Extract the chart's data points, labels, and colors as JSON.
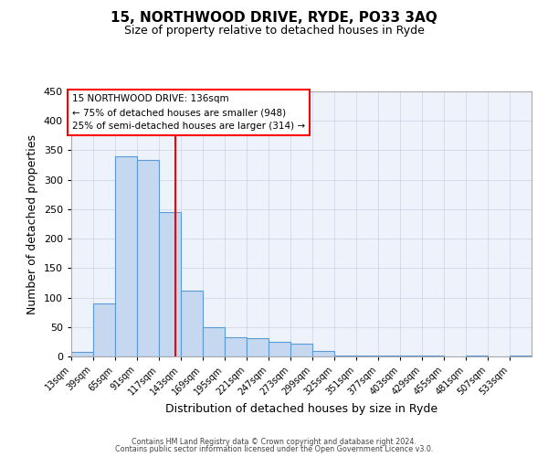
{
  "title": "15, NORTHWOOD DRIVE, RYDE, PO33 3AQ",
  "subtitle": "Size of property relative to detached houses in Ryde",
  "xlabel": "Distribution of detached houses by size in Ryde",
  "ylabel": "Number of detached properties",
  "bin_labels": [
    "13sqm",
    "39sqm",
    "65sqm",
    "91sqm",
    "117sqm",
    "143sqm",
    "169sqm",
    "195sqm",
    "221sqm",
    "247sqm",
    "273sqm",
    "299sqm",
    "325sqm",
    "351sqm",
    "377sqm",
    "403sqm",
    "429sqm",
    "455sqm",
    "481sqm",
    "507sqm",
    "533sqm"
  ],
  "bin_edges": [
    13,
    39,
    65,
    91,
    117,
    143,
    169,
    195,
    221,
    247,
    273,
    299,
    325,
    351,
    377,
    403,
    429,
    455,
    481,
    507,
    533,
    559
  ],
  "bar_heights": [
    7,
    90,
    340,
    333,
    245,
    112,
    50,
    32,
    31,
    25,
    21,
    10,
    2,
    1,
    1,
    1,
    1,
    0,
    1,
    0,
    1
  ],
  "bar_color": "#c5d8f0",
  "bar_edge_color": "#5b9bd5",
  "grid_color": "#d0d8e8",
  "background_color": "#eef2fa",
  "vline_x": 136,
  "vline_color": "red",
  "annotation_title": "15 NORTHWOOD DRIVE: 136sqm",
  "annotation_line1": "← 75% of detached houses are smaller (948)",
  "annotation_line2": "25% of semi-detached houses are larger (314) →",
  "annotation_box_color": "white",
  "annotation_box_edge": "red",
  "ylim": [
    0,
    450
  ],
  "yticks": [
    0,
    50,
    100,
    150,
    200,
    250,
    300,
    350,
    400,
    450
  ],
  "footer1": "Contains HM Land Registry data © Crown copyright and database right 2024.",
  "footer2": "Contains public sector information licensed under the Open Government Licence v3.0."
}
